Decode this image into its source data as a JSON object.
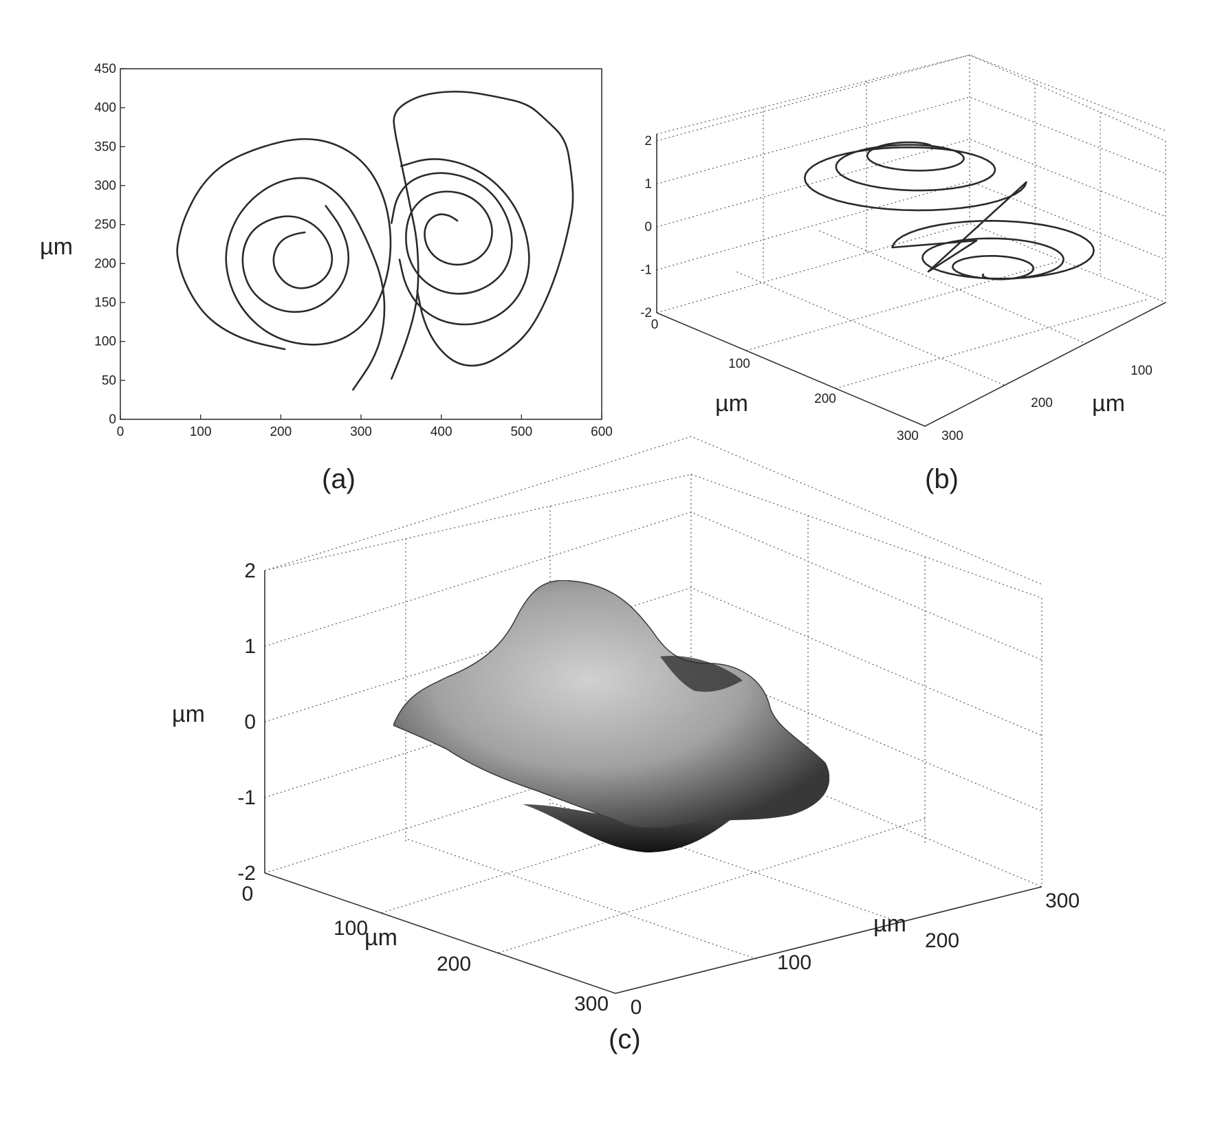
{
  "chart_data": [
    {
      "panel": "(a)",
      "type": "line",
      "ylabel": "µm",
      "xlim": [
        0,
        600
      ],
      "ylim": [
        0,
        450
      ],
      "x_ticks": [
        "0",
        "100",
        "200",
        "300",
        "400",
        "500",
        "600"
      ],
      "y_ticks": [
        "0",
        "50",
        "100",
        "150",
        "200",
        "250",
        "300",
        "350",
        "400",
        "450"
      ],
      "series": [
        {
          "points": [
            [
              290,
              38
            ],
            [
              318,
              80
            ],
            [
              330,
              125
            ],
            [
              328,
              175
            ],
            [
              310,
              225
            ],
            [
              285,
              275
            ],
            [
              260,
              300
            ],
            [
              230,
              312
            ],
            [
              195,
              305
            ],
            [
              165,
              285
            ],
            [
              142,
              255
            ],
            [
              130,
              215
            ],
            [
              135,
              175
            ],
            [
              152,
              140
            ],
            [
              180,
              112
            ],
            [
              215,
              97
            ],
            [
              258,
              95
            ],
            [
              295,
              112
            ],
            [
              320,
              145
            ],
            [
              335,
              190
            ],
            [
              338,
              240
            ],
            [
              328,
              290
            ],
            [
              305,
              330
            ],
            [
              268,
              355
            ],
            [
              225,
              362
            ],
            [
              175,
              350
            ],
            [
              130,
              330
            ],
            [
              100,
              300
            ],
            [
              80,
              260
            ],
            [
              72,
              230
            ],
            [
              70,
              210
            ],
            [
              80,
              175
            ],
            [
              100,
              140
            ],
            [
              125,
              117
            ],
            [
              160,
              100
            ],
            [
              205,
              90
            ]
          ]
        },
        {
          "points": [
            [
              230,
              240
            ],
            [
              218,
              238
            ],
            [
              203,
              232
            ],
            [
              193,
              219
            ],
            [
              190,
              201
            ],
            [
              196,
              185
            ],
            [
              210,
              171
            ],
            [
              228,
              167
            ],
            [
              248,
              174
            ],
            [
              262,
              190
            ],
            [
              265,
              212
            ],
            [
              255,
              236
            ],
            [
              238,
              253
            ],
            [
              214,
              262
            ],
            [
              188,
              258
            ],
            [
              165,
              244
            ],
            [
              153,
              221
            ],
            [
              152,
              193
            ],
            [
              162,
              166
            ],
            [
              182,
              147
            ],
            [
              208,
              137
            ],
            [
              237,
              139
            ],
            [
              262,
              154
            ],
            [
              281,
              180
            ],
            [
              286,
              213
            ],
            [
              276,
              246
            ],
            [
              256,
              274
            ]
          ]
        },
        {
          "points": [
            [
              338,
              52
            ],
            [
              355,
              95
            ],
            [
              368,
              140
            ],
            [
              372,
              180
            ],
            [
              370,
              230
            ],
            [
              362,
              270
            ],
            [
              355,
              305
            ],
            [
              348,
              340
            ],
            [
              342,
              370
            ],
            [
              340,
              390
            ],
            [
              352,
              405
            ],
            [
              380,
              418
            ],
            [
              425,
              422
            ],
            [
              470,
              414
            ],
            [
              508,
              405
            ],
            [
              530,
              385
            ],
            [
              555,
              360
            ],
            [
              562,
              320
            ],
            [
              565,
              280
            ],
            [
              560,
              250
            ],
            [
              548,
              200
            ],
            [
              530,
              150
            ],
            [
              508,
              110
            ],
            [
              480,
              85
            ],
            [
              450,
              68
            ],
            [
              420,
              70
            ],
            [
              395,
              92
            ],
            [
              378,
              125
            ],
            [
              370,
              165
            ]
          ]
        },
        {
          "points": [
            [
              420,
              255
            ],
            [
              410,
              262
            ],
            [
              396,
              264
            ],
            [
              383,
              255
            ],
            [
              378,
              238
            ],
            [
              383,
              218
            ],
            [
              398,
              203
            ],
            [
              420,
              197
            ],
            [
              443,
              203
            ],
            [
              460,
              220
            ],
            [
              465,
              245
            ],
            [
              455,
              270
            ],
            [
              434,
              288
            ],
            [
              406,
              294
            ],
            [
              380,
              287
            ],
            [
              362,
              268
            ],
            [
              355,
              240
            ],
            [
              358,
              208
            ],
            [
              374,
              180
            ],
            [
              400,
              163
            ],
            [
              432,
              160
            ],
            [
              462,
              172
            ],
            [
              483,
              195
            ],
            [
              490,
              230
            ],
            [
              481,
              265
            ],
            [
              460,
              295
            ],
            [
              430,
              312
            ],
            [
              395,
              318
            ],
            [
              362,
              308
            ],
            [
              344,
              285
            ],
            [
              338,
              252
            ]
          ]
        },
        {
          "points": [
            [
              348,
              205
            ],
            [
              355,
              172
            ],
            [
              372,
              144
            ],
            [
              400,
              125
            ],
            [
              437,
              120
            ],
            [
              472,
              132
            ],
            [
              498,
              158
            ],
            [
              511,
              195
            ],
            [
              507,
              238
            ],
            [
              490,
              278
            ],
            [
              462,
              310
            ],
            [
              425,
              330
            ],
            [
              385,
              336
            ],
            [
              350,
              325
            ]
          ]
        }
      ]
    },
    {
      "panel": "(b)",
      "type": "line",
      "ylabel": "µm",
      "xlabel": "µm",
      "zlim": [
        -2,
        2
      ],
      "z_ticks": [
        "-2",
        "-1",
        "0",
        "1",
        "2"
      ],
      "x_ticks": [
        "0",
        "100",
        "200",
        "300"
      ],
      "y_ticks": [
        "300",
        "200",
        "100"
      ],
      "description_series": "3D spiral trajectory"
    },
    {
      "panel": "(c)",
      "type": "surface",
      "zlabel": "µm",
      "xlabel": "µm",
      "ylabel": "µm",
      "zlim": [
        -2,
        2
      ],
      "z_ticks": [
        "-2",
        "-1",
        "0",
        "1",
        "2"
      ],
      "x_ticks": [
        "0",
        "100",
        "200",
        "300"
      ],
      "y_ticks": [
        "0",
        "100",
        "200",
        "300"
      ]
    }
  ],
  "labels": {
    "a": "(a)",
    "b": "(b)",
    "c": "(c)",
    "unit": "µm"
  }
}
